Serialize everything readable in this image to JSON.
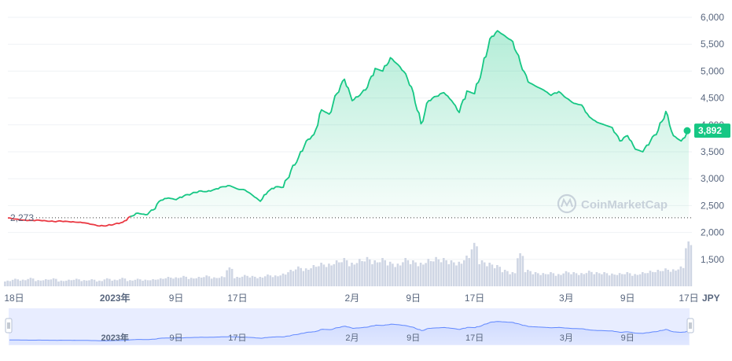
{
  "chart_data": {
    "type": "area",
    "ylim": [
      1000,
      6000
    ],
    "y_ticks": [
      "1,500",
      "2,000",
      "2,500",
      "3,000",
      "3,500",
      "4,000",
      "4,500",
      "5,000",
      "5,500",
      "6,000"
    ],
    "y_tick_values": [
      1500,
      2000,
      2500,
      3000,
      3500,
      4000,
      4500,
      5000,
      5500,
      6000
    ],
    "x_ticks": [
      {
        "label": "18日",
        "bold": false,
        "day": 0
      },
      {
        "label": "2023年",
        "bold": true,
        "day": 14
      },
      {
        "label": "9日",
        "bold": false,
        "day": 22
      },
      {
        "label": "17日",
        "bold": false,
        "day": 30
      },
      {
        "label": "2月",
        "bold": false,
        "day": 45
      },
      {
        "label": "9日",
        "bold": false,
        "day": 53
      },
      {
        "label": "17日",
        "bold": false,
        "day": 61
      },
      {
        "label": "3月",
        "bold": false,
        "day": 73
      },
      {
        "label": "9日",
        "bold": false,
        "day": 81
      },
      {
        "label": "17日",
        "bold": false,
        "day": 89
      }
    ],
    "nav_ticks": [
      {
        "label": "2023年",
        "bold": true,
        "day": 14
      },
      {
        "label": "9日",
        "bold": false,
        "day": 22
      },
      {
        "label": "17日",
        "bold": false,
        "day": 30
      },
      {
        "label": "2月",
        "bold": false,
        "day": 45
      },
      {
        "label": "9日",
        "bold": false,
        "day": 53
      },
      {
        "label": "17日",
        "bold": false,
        "day": 61
      },
      {
        "label": "3月",
        "bold": false,
        "day": 73
      },
      {
        "label": "9日",
        "bold": false,
        "day": 81
      }
    ],
    "currency": "JPY",
    "baseline": {
      "value": 2273,
      "label": "2,273"
    },
    "current": {
      "value": 3892,
      "label": "3,892"
    },
    "watermark": "CoinMarketCap",
    "price_series": {
      "x": [
        0,
        1,
        2,
        3,
        4,
        5,
        6,
        7,
        8,
        9,
        10,
        11,
        12,
        13,
        14,
        15,
        16,
        17,
        18,
        19,
        20,
        21,
        22,
        23,
        24,
        25,
        26,
        27,
        28,
        29,
        30,
        31,
        32,
        33,
        34,
        35,
        36,
        37,
        38,
        39,
        40,
        41,
        42,
        43,
        44,
        45,
        46,
        47,
        48,
        49,
        50,
        51,
        52,
        53,
        54,
        55,
        56,
        57,
        58,
        59,
        60,
        61,
        62,
        63,
        64,
        65,
        66,
        67,
        68,
        69,
        70,
        71,
        72,
        73,
        74,
        75,
        76,
        77,
        78,
        79,
        80,
        81,
        82,
        83,
        84,
        85,
        86,
        87,
        88,
        89
      ],
      "y": [
        2270,
        2250,
        2230,
        2225,
        2230,
        2215,
        2205,
        2210,
        2200,
        2190,
        2180,
        2150,
        2120,
        2130,
        2160,
        2190,
        2300,
        2360,
        2330,
        2420,
        2600,
        2640,
        2610,
        2680,
        2720,
        2770,
        2760,
        2800,
        2850,
        2870,
        2810,
        2790,
        2690,
        2580,
        2760,
        2850,
        2840,
        3150,
        3400,
        3700,
        3820,
        4280,
        4200,
        4580,
        4850,
        4450,
        4550,
        4700,
        5050,
        5000,
        5250,
        5120,
        4950,
        4600,
        4020,
        4450,
        4530,
        4600,
        4450,
        4230,
        4630,
        4580,
        5050,
        5600,
        5750,
        5650,
        5550,
        5150,
        4800,
        4720,
        4650,
        4550,
        4620,
        4500,
        4400,
        4370,
        4150,
        4050,
        4000,
        3950,
        3700,
        3800,
        3550,
        3500,
        3700,
        3900,
        4250,
        3800,
        3700,
        3892
      ]
    },
    "volume_series": {
      "x": [
        0,
        1,
        2,
        3,
        4,
        5,
        6,
        7,
        8,
        9,
        10,
        11,
        12,
        13,
        14,
        15,
        16,
        17,
        18,
        19,
        20,
        21,
        22,
        23,
        24,
        25,
        26,
        27,
        28,
        29,
        30,
        31,
        32,
        33,
        34,
        35,
        36,
        37,
        38,
        39,
        40,
        41,
        42,
        43,
        44,
        45,
        46,
        47,
        48,
        49,
        50,
        51,
        52,
        53,
        54,
        55,
        56,
        57,
        58,
        59,
        60,
        61,
        62,
        63,
        64,
        65,
        66,
        67,
        68,
        69,
        70,
        71,
        72,
        73,
        74,
        75,
        76,
        77,
        78,
        79,
        80,
        81,
        82,
        83,
        84,
        85,
        86,
        87,
        88,
        89
      ],
      "y": [
        0.12,
        0.16,
        0.14,
        0.18,
        0.13,
        0.15,
        0.17,
        0.12,
        0.14,
        0.16,
        0.13,
        0.15,
        0.12,
        0.17,
        0.14,
        0.18,
        0.13,
        0.16,
        0.14,
        0.15,
        0.17,
        0.2,
        0.19,
        0.22,
        0.18,
        0.2,
        0.23,
        0.19,
        0.21,
        0.4,
        0.2,
        0.24,
        0.22,
        0.2,
        0.25,
        0.23,
        0.27,
        0.35,
        0.42,
        0.38,
        0.45,
        0.5,
        0.48,
        0.55,
        0.6,
        0.5,
        0.58,
        0.62,
        0.55,
        0.6,
        0.52,
        0.48,
        0.6,
        0.55,
        0.5,
        0.58,
        0.62,
        0.6,
        0.55,
        0.52,
        0.65,
        0.92,
        0.55,
        0.5,
        0.45,
        0.35,
        0.3,
        0.7,
        0.35,
        0.3,
        0.28,
        0.3,
        0.26,
        0.32,
        0.3,
        0.28,
        0.33,
        0.3,
        0.3,
        0.27,
        0.28,
        0.3,
        0.26,
        0.3,
        0.33,
        0.35,
        0.38,
        0.36,
        0.42,
        0.95
      ]
    }
  }
}
